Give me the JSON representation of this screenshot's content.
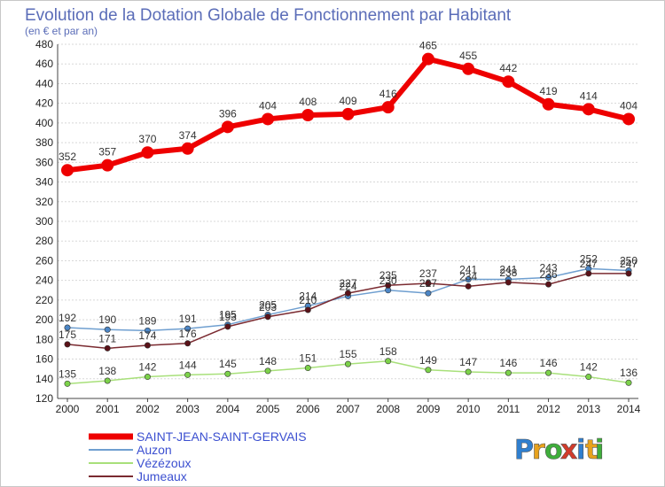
{
  "chart_data": {
    "type": "line",
    "title": "Evolution de la Dotation Globale de Fonctionnement par Habitant",
    "subtitle": "(en € et par an)",
    "categories": [
      "2000",
      "2001",
      "2002",
      "2003",
      "2004",
      "2005",
      "2006",
      "2007",
      "2008",
      "2009",
      "2010",
      "2011",
      "2012",
      "2013",
      "2014"
    ],
    "y_ticks": [
      "120",
      "140",
      "160",
      "180",
      "200",
      "220",
      "240",
      "260",
      "280",
      "300",
      "320",
      "340",
      "360",
      "380",
      "400",
      "420",
      "440",
      "460",
      "480"
    ],
    "ylim": [
      120,
      480
    ],
    "grid": "horizontal",
    "legend_position": "bottom-left",
    "series": [
      {
        "name": "SAINT-JEAN-SAINT-GERVAIS",
        "color": "#ee0000",
        "marker_color": "#ee0000",
        "values": [
          352,
          357,
          370,
          374,
          396,
          404,
          408,
          409,
          416,
          465,
          455,
          442,
          419,
          414,
          404
        ]
      },
      {
        "name": "Auzon",
        "color": "#6f9fd0",
        "marker_color": "#4c86c6",
        "values": [
          192,
          190,
          189,
          191,
          195,
          205,
          214,
          224,
          230,
          227,
          241,
          241,
          243,
          252,
          250
        ]
      },
      {
        "name": "Vézézoux",
        "color": "#a8e07a",
        "marker_color": "#7cd24a",
        "values": [
          135,
          138,
          142,
          144,
          145,
          148,
          151,
          155,
          158,
          149,
          147,
          146,
          146,
          142,
          136
        ]
      },
      {
        "name": "Jumeaux",
        "color": "#7a2a30",
        "marker_color": "#5a1218",
        "values": [
          175,
          171,
          174,
          176,
          193,
          203,
          210,
          227,
          235,
          237,
          234,
          238,
          236,
          247,
          247
        ]
      }
    ],
    "data_labels": [
      [
        "352",
        "357",
        "370",
        "374",
        "396",
        "404",
        "408",
        "409",
        "416",
        "465",
        "455",
        "442",
        "419",
        "414",
        "404"
      ],
      [
        "192",
        "190",
        "189",
        "191",
        "195",
        "205",
        "214",
        "224",
        "230",
        "227",
        "241",
        "241",
        "243",
        "252",
        "250"
      ],
      [
        "135",
        "138",
        "142",
        "144",
        "145",
        "148",
        "151",
        "155",
        "158",
        "149",
        "147",
        "146",
        "146",
        "142",
        "136"
      ],
      [
        "175",
        "171",
        "174",
        "176",
        "193",
        "203",
        "210",
        "227",
        "235",
        "237",
        "234",
        "238",
        "236",
        "247",
        "247"
      ]
    ]
  },
  "logo": {
    "letters": [
      "P",
      "r",
      "o",
      "x",
      "i",
      "t",
      "i"
    ],
    "colors": [
      "#2f7fcf",
      "#e8a21c",
      "#3fae3b",
      "#d23b2b",
      "#2f7fcf",
      "#e8a21c",
      "#3fae3b"
    ]
  }
}
